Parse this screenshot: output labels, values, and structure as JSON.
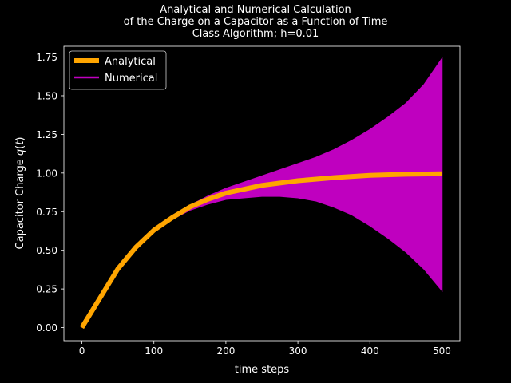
{
  "chart_data": {
    "type": "line",
    "title": [
      "Analytical and Numerical Calculation",
      "of the Charge on a Capacitor as a Function of Time",
      "Class Algorithm; h=0.01"
    ],
    "xlabel": "time steps",
    "ylabel": "Capacitor Charge q(t)",
    "xlim": [
      -25,
      525
    ],
    "ylim": [
      -0.085,
      1.82
    ],
    "xticks": [
      0,
      100,
      200,
      300,
      400,
      500
    ],
    "yticks": [
      0.0,
      0.25,
      0.5,
      0.75,
      1.0,
      1.25,
      1.5,
      1.75
    ],
    "xtick_labels": [
      "0",
      "100",
      "200",
      "300",
      "400",
      "500"
    ],
    "ytick_labels": [
      "0.00",
      "0.25",
      "0.50",
      "0.75",
      "1.00",
      "1.25",
      "1.50",
      "1.75"
    ],
    "grid": false,
    "legend_position": "top-left",
    "series": [
      {
        "name": "Analytical",
        "color": "#ffa500",
        "x": [
          0,
          25,
          50,
          75,
          100,
          125,
          150,
          175,
          200,
          250,
          300,
          350,
          400,
          450,
          500
        ],
        "y": [
          0.0,
          0.19,
          0.38,
          0.52,
          0.63,
          0.71,
          0.78,
          0.83,
          0.87,
          0.92,
          0.95,
          0.97,
          0.985,
          0.992,
          0.995
        ]
      },
      {
        "name": "Numerical",
        "color": "#bf00bf",
        "style": "rapid oscillation drawn as filled band",
        "x": [
          0,
          25,
          50,
          75,
          100,
          125,
          150,
          175,
          200,
          225,
          250,
          275,
          300,
          325,
          350,
          375,
          400,
          425,
          450,
          475,
          500
        ],
        "upper": [
          0.0,
          0.19,
          0.38,
          0.52,
          0.63,
          0.72,
          0.79,
          0.85,
          0.9,
          0.94,
          0.98,
          1.02,
          1.06,
          1.1,
          1.15,
          1.21,
          1.28,
          1.36,
          1.45,
          1.57,
          1.74
        ],
        "lower": [
          0.0,
          0.19,
          0.38,
          0.52,
          0.63,
          0.7,
          0.76,
          0.8,
          0.83,
          0.84,
          0.85,
          0.85,
          0.84,
          0.82,
          0.78,
          0.73,
          0.66,
          0.58,
          0.49,
          0.38,
          0.24
        ]
      }
    ]
  }
}
